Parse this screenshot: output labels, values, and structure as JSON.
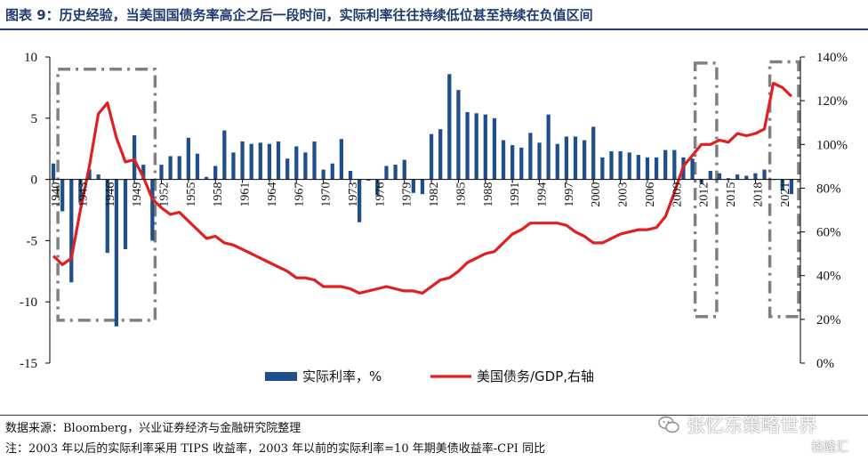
{
  "title": "图表 9：历史经验，当美国国债务率高企之后一段时间，实际利率往往持续低位甚至持续在负值区间",
  "footer": {
    "source": "数据来源：Bloomberg，兴业证券经济与金融研究院整理",
    "note": "注：2003 年以后的实际利率采用 TIPS 收益率，2003 年以前的实际利率=10 年期美债收益率-CPI 同比"
  },
  "watermark": {
    "account": "张忆东策略世界",
    "brand": "格隆汇"
  },
  "colors": {
    "bar": "#1f4e8c",
    "line": "#e02020",
    "box": "#808080",
    "title": "#1f3b70"
  },
  "chart_data": {
    "type": "bar+line",
    "y_left": {
      "lim": [
        -15,
        10
      ],
      "ticks": [
        "-15",
        "-10",
        "-5",
        "0",
        "5",
        "10"
      ]
    },
    "y_right": {
      "lim": [
        0,
        140
      ],
      "ticks": [
        "0%",
        "20%",
        "40%",
        "60%",
        "80%",
        "100%",
        "120%",
        "140%"
      ]
    },
    "x_ticks": [
      "1940",
      "1943",
      "1946",
      "1949",
      "1952",
      "1955",
      "1958",
      "1961",
      "1964",
      "1967",
      "1970",
      "1973",
      "1976",
      "1979",
      "1982",
      "1985",
      "1988",
      "1991",
      "1994",
      "1997",
      "2000",
      "2003",
      "2006",
      "2009",
      "2012",
      "2015",
      "2018",
      "2021"
    ],
    "legend": [
      "实际利率，%",
      "美国债务/GDP,右轴"
    ],
    "legend_placement": "bottom-center",
    "bars": {
      "name": "实际利率，%",
      "x": [
        1940,
        1941,
        1942,
        1943,
        1944,
        1945,
        1946,
        1947,
        1948,
        1949,
        1950,
        1951,
        1952,
        1953,
        1954,
        1955,
        1956,
        1957,
        1958,
        1959,
        1960,
        1961,
        1962,
        1963,
        1964,
        1965,
        1966,
        1967,
        1968,
        1969,
        1970,
        1971,
        1972,
        1973,
        1974,
        1975,
        1976,
        1977,
        1978,
        1979,
        1980,
        1981,
        1982,
        1983,
        1984,
        1985,
        1986,
        1987,
        1988,
        1989,
        1990,
        1991,
        1992,
        1993,
        1994,
        1995,
        1996,
        1997,
        1998,
        1999,
        2000,
        2001,
        2002,
        2003,
        2004,
        2005,
        2006,
        2007,
        2008,
        2009,
        2010,
        2011,
        2012,
        2013,
        2014,
        2015,
        2016,
        2017,
        2018,
        2019,
        2020,
        2021,
        2022
      ],
      "values": [
        1.3,
        -2.6,
        -8.4,
        -1.9,
        0.8,
        0.4,
        -6.0,
        -12.0,
        -5.7,
        3.6,
        1.2,
        -5.0,
        1.2,
        1.9,
        1.9,
        3.4,
        2.1,
        0.2,
        1.1,
        4.0,
        2.2,
        3.1,
        2.9,
        3.0,
        2.9,
        3.1,
        1.7,
        2.7,
        2.2,
        3.1,
        0.8,
        1.3,
        3.3,
        0.7,
        -3.5,
        -0.1,
        -1.3,
        1.1,
        1.2,
        1.6,
        -1.1,
        -1.2,
        3.7,
        4.1,
        8.6,
        7.3,
        5.5,
        5.4,
        5.3,
        5.0,
        3.2,
        2.8,
        2.6,
        3.8,
        3.0,
        5.3,
        2.9,
        3.5,
        3.5,
        3.2,
        4.3,
        1.8,
        2.3,
        2.3,
        2.2,
        2.0,
        1.8,
        1.8,
        2.4,
        2.4,
        1.8,
        1.7,
        -0.3,
        0.7,
        0.5,
        0.1,
        0.4,
        0.3,
        0.5,
        0.8,
        0.0,
        -0.9,
        -1.2
      ]
    },
    "line": {
      "name": "美国债务/GDP,右轴",
      "x": [
        1940,
        1941,
        1942,
        1943,
        1944,
        1945,
        1946,
        1947,
        1948,
        1949,
        1950,
        1951,
        1952,
        1953,
        1954,
        1955,
        1956,
        1957,
        1958,
        1959,
        1960,
        1961,
        1962,
        1963,
        1964,
        1965,
        1966,
        1967,
        1968,
        1969,
        1970,
        1971,
        1972,
        1973,
        1974,
        1975,
        1976,
        1977,
        1978,
        1979,
        1980,
        1981,
        1982,
        1983,
        1984,
        1985,
        1986,
        1987,
        1988,
        1989,
        1990,
        1991,
        1992,
        1993,
        1994,
        1995,
        1996,
        1997,
        1998,
        1999,
        2000,
        2001,
        2002,
        2003,
        2004,
        2005,
        2006,
        2007,
        2008,
        2009,
        2010,
        2011,
        2012,
        2013,
        2014,
        2015,
        2016,
        2017,
        2018,
        2019,
        2020,
        2021,
        2022
      ],
      "values": [
        49,
        45,
        48,
        70,
        90,
        114,
        119,
        103,
        92,
        93,
        85,
        75,
        71,
        68,
        69,
        65,
        61,
        57,
        58,
        55,
        54,
        52,
        50,
        48,
        46,
        44,
        42,
        39,
        39,
        38,
        35,
        35,
        35,
        34,
        32,
        33,
        34,
        35,
        34,
        33,
        33,
        32,
        35,
        38,
        39,
        42,
        46,
        48,
        50,
        51,
        55,
        59,
        61,
        64,
        64,
        64,
        64,
        63,
        60,
        58,
        55,
        55,
        57,
        59,
        60,
        61,
        61,
        62,
        67,
        78,
        90,
        95,
        100,
        100,
        102,
        101,
        105,
        104,
        105,
        107,
        128,
        126,
        122
      ]
    },
    "highlight_boxes": [
      {
        "x_range": [
          1940.5,
          1951.3
        ],
        "y_range": [
          -11.5,
          9.0
        ]
      },
      {
        "x_range": [
          2011.3,
          2013.7
        ],
        "y_range": [
          -11.2,
          9.5
        ]
      },
      {
        "x_range": [
          2019.6,
          2022.8
        ],
        "y_range": [
          -11.2,
          9.6
        ]
      }
    ]
  }
}
